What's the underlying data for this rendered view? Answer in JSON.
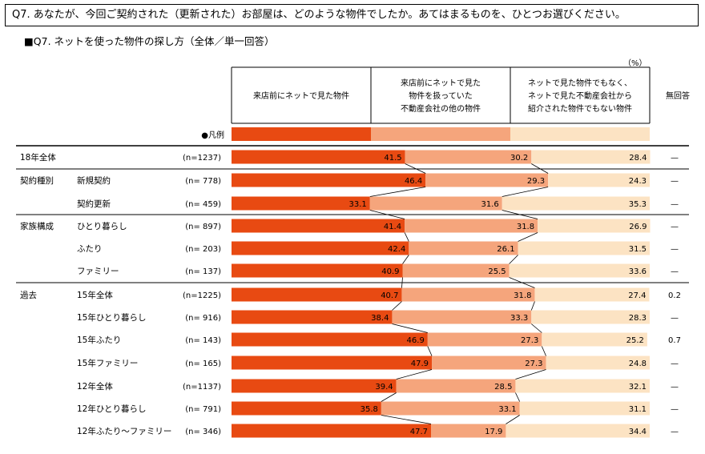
{
  "header": {
    "question": "Q7. あなたが、今回ご契約された（更新された）お部屋は、どのような物件でしたか。あてはまるものを、ひとつお選びください。",
    "subtitle": "■Q7. ネットを使った物件の探し方（全体／単一回答）",
    "unit": "（%）"
  },
  "legend_label": "●凡例",
  "columns": {
    "c1": [
      "来店前にネットで見た物件"
    ],
    "c2": [
      "来店前にネットで見た",
      "物件を扱っていた",
      "不動産会社の他の物件"
    ],
    "c3": [
      "ネットで見た物件でもなく、",
      "ネットで見た不動産会社から",
      "紹介された物件でもない物件"
    ],
    "no_answer": "無回答"
  },
  "colors": {
    "c1": "#E84A12",
    "c2": "#F5A57C",
    "c3": "#FCE3C3"
  },
  "chart_data": {
    "type": "bar",
    "stacked": true,
    "orientation": "horizontal",
    "xlim": [
      0,
      100
    ],
    "series_names": [
      "来店前にネットで見た物件",
      "来店前にネットで見た物件を扱っていた不動産会社の他の物件",
      "ネットで見た物件でもなく、ネットで見た不動産会社から紹介された物件でもない物件",
      "無回答"
    ],
    "rows": [
      {
        "group": "18年全体",
        "label": "",
        "n": "(n=1237)",
        "values": [
          41.5,
          30.2,
          28.4
        ],
        "na": "—"
      },
      {
        "group": "契約種別",
        "label": "新規契約",
        "n": "(n= 778)",
        "values": [
          46.4,
          29.3,
          24.3
        ],
        "na": "—"
      },
      {
        "group": "",
        "label": "契約更新",
        "n": "(n= 459)",
        "values": [
          33.1,
          31.6,
          35.3
        ],
        "na": "—"
      },
      {
        "group": "家族構成",
        "label": "ひとり暮らし",
        "n": "(n= 897)",
        "values": [
          41.4,
          31.8,
          26.9
        ],
        "na": "—"
      },
      {
        "group": "",
        "label": "ふたり",
        "n": "(n= 203)",
        "values": [
          42.4,
          26.1,
          31.5
        ],
        "na": "—"
      },
      {
        "group": "",
        "label": "ファミリー",
        "n": "(n= 137)",
        "values": [
          40.9,
          25.5,
          33.6
        ],
        "na": "—"
      },
      {
        "group": "過去",
        "label": "15年全体",
        "n": "(n=1225)",
        "values": [
          40.7,
          31.8,
          27.4
        ],
        "na": "0.2"
      },
      {
        "group": "",
        "label": "15年ひとり暮らし",
        "n": "(n= 916)",
        "values": [
          38.4,
          33.3,
          28.3
        ],
        "na": "—"
      },
      {
        "group": "",
        "label": "15年ふたり",
        "n": "(n= 143)",
        "values": [
          46.9,
          27.3,
          25.2
        ],
        "na": "0.7"
      },
      {
        "group": "",
        "label": "15年ファミリー",
        "n": "(n= 165)",
        "values": [
          47.9,
          27.3,
          24.8
        ],
        "na": "—"
      },
      {
        "group": "",
        "label": "12年全体",
        "n": "(n=1137)",
        "values": [
          39.4,
          28.5,
          32.1
        ],
        "na": "—"
      },
      {
        "group": "",
        "label": "12年ひとり暮らし",
        "n": "(n= 791)",
        "values": [
          35.8,
          33.1,
          31.1
        ],
        "na": "—"
      },
      {
        "group": "",
        "label": "12年ふたり～ファミリー",
        "n": "(n= 346)",
        "values": [
          47.7,
          17.9,
          34.4
        ],
        "na": "—"
      }
    ]
  }
}
